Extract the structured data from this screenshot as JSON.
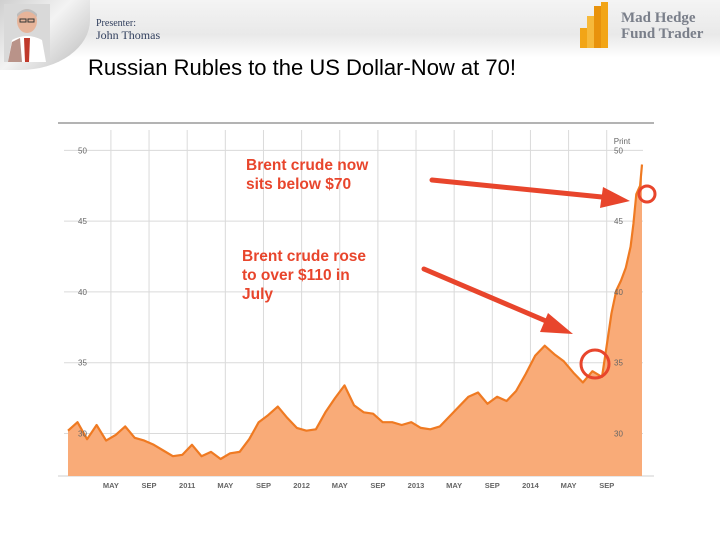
{
  "presenter": {
    "role": "Presenter:",
    "name": "John Thomas"
  },
  "brand": {
    "line1": "Mad Hedge",
    "line2": "Fund Trader"
  },
  "slide_title": "Russian Rubles to the US Dollar-Now at 70!",
  "print_label": "Print",
  "annotations": {
    "top": [
      "Brent crude now",
      "sits below $70"
    ],
    "bottom": [
      "Brent crude rose",
      "to over $110 in",
      "July"
    ]
  },
  "colors": {
    "line": "#ef7a22",
    "fill": "#f9ab78",
    "annotation": "#e8452c",
    "grid": "#dadada"
  },
  "chart_data": {
    "type": "area",
    "title": "",
    "xlabel": "",
    "ylabel": "",
    "ylim": [
      27,
      52
    ],
    "y_ticks": [
      30,
      35,
      40,
      45,
      50
    ],
    "x_ticks": [
      "MAY",
      "SEP",
      "2011",
      "MAY",
      "SEP",
      "2012",
      "MAY",
      "SEP",
      "2013",
      "MAY",
      "SEP",
      "2014",
      "MAY",
      "SEP"
    ],
    "x_tick_positions": [
      4.5,
      8.5,
      12.5,
      16.5,
      20.5,
      24.5,
      28.5,
      32.5,
      36.5,
      40.5,
      44.5,
      48.5,
      52.5,
      56.5
    ],
    "x_range": [
      0,
      60.2
    ],
    "grid": true,
    "x": [
      0,
      1,
      2,
      3,
      4,
      5,
      6,
      7,
      8,
      9,
      10,
      11,
      12,
      13,
      14,
      15,
      16,
      17,
      18,
      19,
      20,
      21,
      22,
      23,
      24,
      25,
      26,
      27,
      28,
      29,
      30,
      31,
      32,
      33,
      34,
      35,
      36,
      37,
      38,
      39,
      40,
      41,
      42,
      43,
      44,
      45,
      46,
      47,
      48,
      49,
      50,
      51,
      52,
      53,
      54,
      55,
      56,
      56.5,
      57,
      57.5,
      58,
      58.5,
      59,
      59.3,
      59.6,
      60,
      60.2
    ],
    "y": [
      30.2,
      30.8,
      29.6,
      30.6,
      29.5,
      29.9,
      30.5,
      29.7,
      29.5,
      29.2,
      28.8,
      28.4,
      28.5,
      29.2,
      28.4,
      28.7,
      28.2,
      28.6,
      28.7,
      29.6,
      30.8,
      31.3,
      31.9,
      31.1,
      30.4,
      30.2,
      30.3,
      31.5,
      32.5,
      33.4,
      32.0,
      31.5,
      31.4,
      30.8,
      30.8,
      30.6,
      30.8,
      30.4,
      30.3,
      30.5,
      31.2,
      31.9,
      32.6,
      32.9,
      32.1,
      32.6,
      32.3,
      33.0,
      34.2,
      35.5,
      36.2,
      35.6,
      35.1,
      34.3,
      33.6,
      34.4,
      34.0,
      36.2,
      38.5,
      40.1,
      40.8,
      41.7,
      43.2,
      44.8,
      46.9,
      47.5,
      49.0
    ]
  }
}
